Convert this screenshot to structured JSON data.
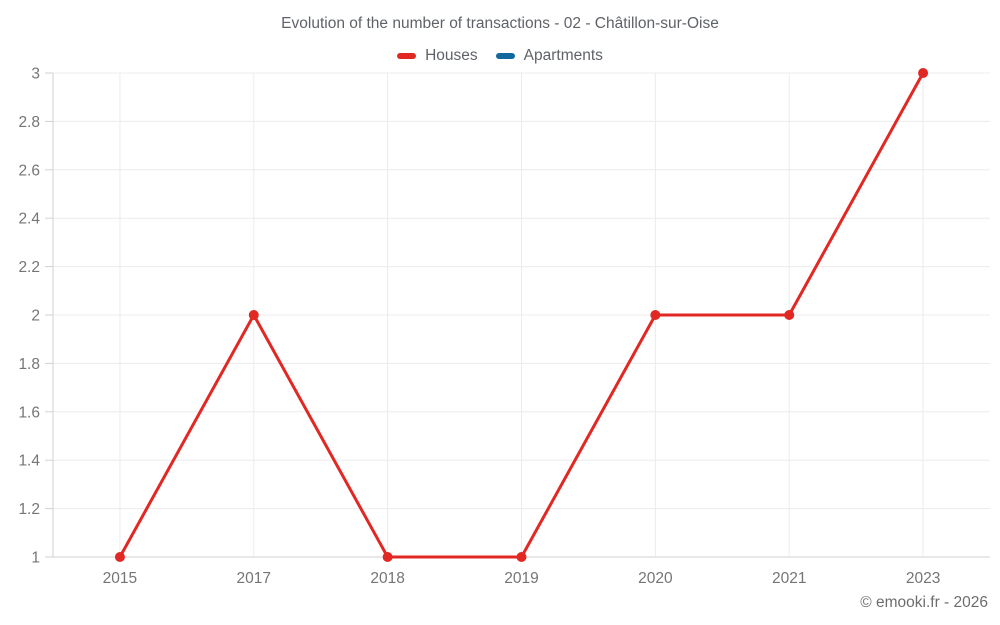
{
  "title": "Evolution of the number of transactions - 02 - Châtillon-sur-Oise",
  "legend": [
    {
      "label": "Houses",
      "color": "#e12823"
    },
    {
      "label": "Apartments",
      "color": "#11699e"
    }
  ],
  "footer": "© emooki.fr - 2026",
  "chart_data": {
    "type": "line",
    "title": "Evolution of the number of transactions - 02 - Châtillon-sur-Oise",
    "categories": [
      "2015",
      "2017",
      "2018",
      "2019",
      "2020",
      "2021",
      "2023"
    ],
    "series": [
      {
        "name": "Houses",
        "color": "#e12823",
        "values": [
          1,
          2,
          1,
          1,
          2,
          2,
          3
        ]
      },
      {
        "name": "Apartments",
        "color": "#11699e",
        "values": []
      }
    ],
    "xlabel": "",
    "ylabel": "",
    "ylim": [
      1,
      3
    ],
    "yticks": [
      1,
      1.2,
      1.4,
      1.6,
      1.8,
      2,
      2.2,
      2.4,
      2.6,
      2.8,
      3
    ],
    "ytick_labels": [
      "1",
      "1.2",
      "1.4",
      "1.6",
      "1.8",
      "2",
      "2.2",
      "2.4",
      "2.6",
      "2.8",
      "3"
    ],
    "grid": true,
    "legend_position": "top",
    "colors": {
      "grid": "#ececec",
      "axis": "#d2d2d2",
      "tick_text": "#757575",
      "title_text": "#5f6368",
      "footer_text": "#6d6d6d"
    }
  }
}
